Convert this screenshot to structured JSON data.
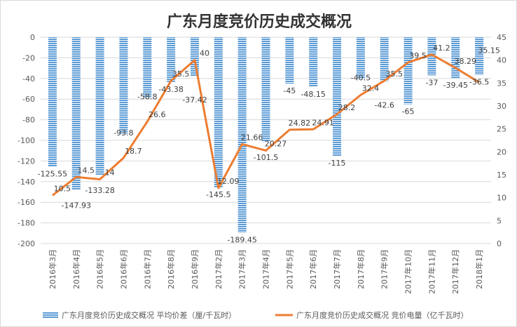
{
  "chart_data": {
    "type": "bar+line",
    "title": "广东月度竞价历史成交概况",
    "categories": [
      "2016年3月",
      "2016年4月",
      "2016年5月",
      "2016年6月",
      "2016年7月",
      "2016年8月",
      "2016年9月",
      "2017年2月",
      "2017年3月",
      "2017年4月",
      "2017年5月",
      "2017年6月",
      "2017年7月",
      "2017年8月",
      "2017年9月",
      "2017年10月",
      "2017年11月",
      "2017年12月",
      "2018年1月"
    ],
    "series": [
      {
        "name": "广东月度竞价历史成交概况 平均价差（厘/千瓦时）",
        "type": "bar",
        "axis": "left",
        "color": "#5b9bd5",
        "values": [
          -125.55,
          -147.93,
          -133.28,
          -93.8,
          -58.8,
          -43.38,
          -37.42,
          -145.5,
          -189.45,
          -101.5,
          -45,
          -48.15,
          -115,
          -40.5,
          -42.6,
          -65,
          -37,
          -39.45,
          -36.5
        ]
      },
      {
        "name": "广东月度竞价历史成交概况 竞价电量（亿千瓦时）",
        "type": "line",
        "axis": "right",
        "color": "#ed7d31",
        "values": [
          10.5,
          14.5,
          14,
          18.7,
          26.6,
          35.5,
          40,
          12.09,
          21.66,
          20.27,
          24.82,
          24.91,
          28.2,
          32.4,
          35.5,
          39.5,
          41.2,
          38.29,
          35.15
        ]
      }
    ],
    "left_axis": {
      "range": [
        -200,
        0
      ],
      "ticks": [
        0,
        -20,
        -40,
        -60,
        -80,
        -100,
        -120,
        -140,
        -160,
        -180,
        -200
      ]
    },
    "right_axis": {
      "range": [
        0,
        45
      ],
      "ticks": [
        0,
        5,
        10,
        15,
        20,
        25,
        30,
        35,
        40,
        45
      ]
    },
    "grid": true,
    "legend": "bottom"
  }
}
